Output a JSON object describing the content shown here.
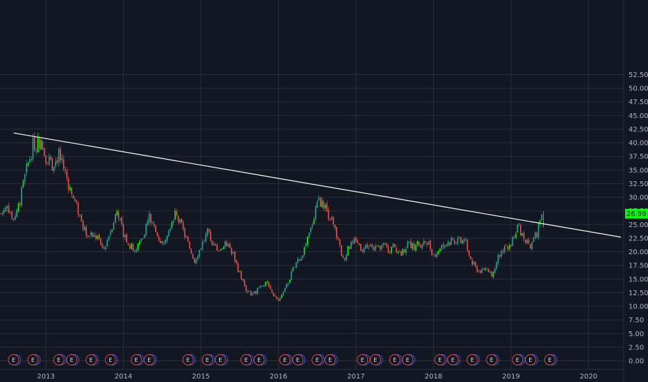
{
  "chart_data": {
    "type": "candlestick",
    "title": "",
    "xlabel": "",
    "ylabel": "",
    "ylim": [
      0,
      52.5
    ],
    "xlim": [
      "2012-06",
      "2020-06"
    ],
    "grid": true,
    "y_ticks": [
      "0.00",
      "2.50",
      "5.00",
      "7.50",
      "10.00",
      "12.50",
      "15.00",
      "17.50",
      "20.00",
      "22.50",
      "25.00",
      "27.50",
      "30.00",
      "32.50",
      "35.00",
      "37.50",
      "40.00",
      "42.50",
      "45.00",
      "47.50",
      "50.00",
      "52.50"
    ],
    "x_ticks": [
      "2013",
      "2014",
      "2015",
      "2016",
      "2017",
      "2018",
      "2019",
      "2020"
    ],
    "last_price": "26.99",
    "series": [
      {
        "type": "price",
        "points": [
          [
            "2012-06",
            27.0
          ],
          [
            "2012-07",
            28.5
          ],
          [
            "2012-08",
            26.0
          ],
          [
            "2012-09",
            29.5
          ],
          [
            "2012-10",
            35.0
          ],
          [
            "2012-11",
            39.5
          ],
          [
            "2012-12",
            40.2
          ],
          [
            "2013-01",
            37.5
          ],
          [
            "2013-02",
            36.0
          ],
          [
            "2013-03",
            37.8
          ],
          [
            "2013-04",
            34.5
          ],
          [
            "2013-05",
            30.5
          ],
          [
            "2013-06",
            27.5
          ],
          [
            "2013-07",
            24.0
          ],
          [
            "2013-08",
            23.0
          ],
          [
            "2013-09",
            22.5
          ],
          [
            "2013-10",
            20.5
          ],
          [
            "2013-11",
            24.0
          ],
          [
            "2013-12",
            27.5
          ],
          [
            "2014-01",
            23.5
          ],
          [
            "2014-02",
            21.0
          ],
          [
            "2014-03",
            20.5
          ],
          [
            "2014-04",
            23.0
          ],
          [
            "2014-05",
            26.5
          ],
          [
            "2014-06",
            23.5
          ],
          [
            "2014-07",
            21.5
          ],
          [
            "2014-08",
            24.5
          ],
          [
            "2014-09",
            27.0
          ],
          [
            "2014-10",
            24.5
          ],
          [
            "2014-11",
            21.5
          ],
          [
            "2014-12",
            18.5
          ],
          [
            "2015-01",
            21.0
          ],
          [
            "2015-02",
            23.5
          ],
          [
            "2015-03",
            21.0
          ],
          [
            "2015-04",
            20.5
          ],
          [
            "2015-05",
            21.5
          ],
          [
            "2015-06",
            19.5
          ],
          [
            "2015-07",
            16.0
          ],
          [
            "2015-08",
            13.0
          ],
          [
            "2015-09",
            12.0
          ],
          [
            "2015-10",
            13.5
          ],
          [
            "2015-11",
            14.5
          ],
          [
            "2015-12",
            12.5
          ],
          [
            "2016-01",
            11.0
          ],
          [
            "2016-02",
            13.0
          ],
          [
            "2016-03",
            16.0
          ],
          [
            "2016-04",
            18.5
          ],
          [
            "2016-05",
            20.5
          ],
          [
            "2016-06",
            24.0
          ],
          [
            "2016-07",
            29.5
          ],
          [
            "2016-08",
            28.5
          ],
          [
            "2016-09",
            26.5
          ],
          [
            "2016-10",
            23.0
          ],
          [
            "2016-11",
            18.5
          ],
          [
            "2016-12",
            21.0
          ],
          [
            "2017-01",
            22.0
          ],
          [
            "2017-02",
            20.5
          ],
          [
            "2017-03",
            21.5
          ],
          [
            "2017-04",
            20.5
          ],
          [
            "2017-05",
            21.0
          ],
          [
            "2017-06",
            20.5
          ],
          [
            "2017-07",
            21.0
          ],
          [
            "2017-08",
            19.5
          ],
          [
            "2017-09",
            21.5
          ],
          [
            "2017-10",
            21.0
          ],
          [
            "2017-11",
            21.5
          ],
          [
            "2017-12",
            22.0
          ],
          [
            "2018-01",
            19.5
          ],
          [
            "2018-02",
            20.5
          ],
          [
            "2018-03",
            21.5
          ],
          [
            "2018-04",
            22.0
          ],
          [
            "2018-05",
            22.5
          ],
          [
            "2018-06",
            21.5
          ],
          [
            "2018-07",
            18.0
          ],
          [
            "2018-08",
            16.5
          ],
          [
            "2018-09",
            17.0
          ],
          [
            "2018-10",
            16.0
          ],
          [
            "2018-11",
            19.0
          ],
          [
            "2018-12",
            21.0
          ],
          [
            "2019-01",
            21.5
          ],
          [
            "2019-02",
            24.5
          ],
          [
            "2019-03",
            23.0
          ],
          [
            "2019-04",
            20.5
          ],
          [
            "2019-05",
            23.5
          ],
          [
            "2019-06",
            26.99
          ]
        ]
      }
    ],
    "trendline": {
      "from": [
        "2012-08",
        41.8
      ],
      "to": [
        "2020-06",
        22.7
      ],
      "color": "#ffffff"
    },
    "colors": {
      "up": "#26a69a",
      "up_alt": "#00ff00",
      "down": "#ef5350",
      "grid": "#2a2e39",
      "background": "#131722",
      "axis_text": "#b2b5be",
      "price_tag": "#00ff00"
    },
    "earnings_markers": {
      "label": "E",
      "dates": [
        "2012-08",
        "2012-11",
        "2013-03",
        "2013-05",
        "2013-08",
        "2013-11",
        "2014-03",
        "2014-05",
        "2014-11",
        "2015-02",
        "2015-04",
        "2015-08",
        "2015-10",
        "2016-02",
        "2016-04",
        "2016-07",
        "2016-09",
        "2017-02",
        "2017-04",
        "2017-07",
        "2017-09",
        "2018-02",
        "2018-04",
        "2018-07",
        "2018-10",
        "2019-02",
        "2019-04",
        "2019-07"
      ]
    }
  }
}
